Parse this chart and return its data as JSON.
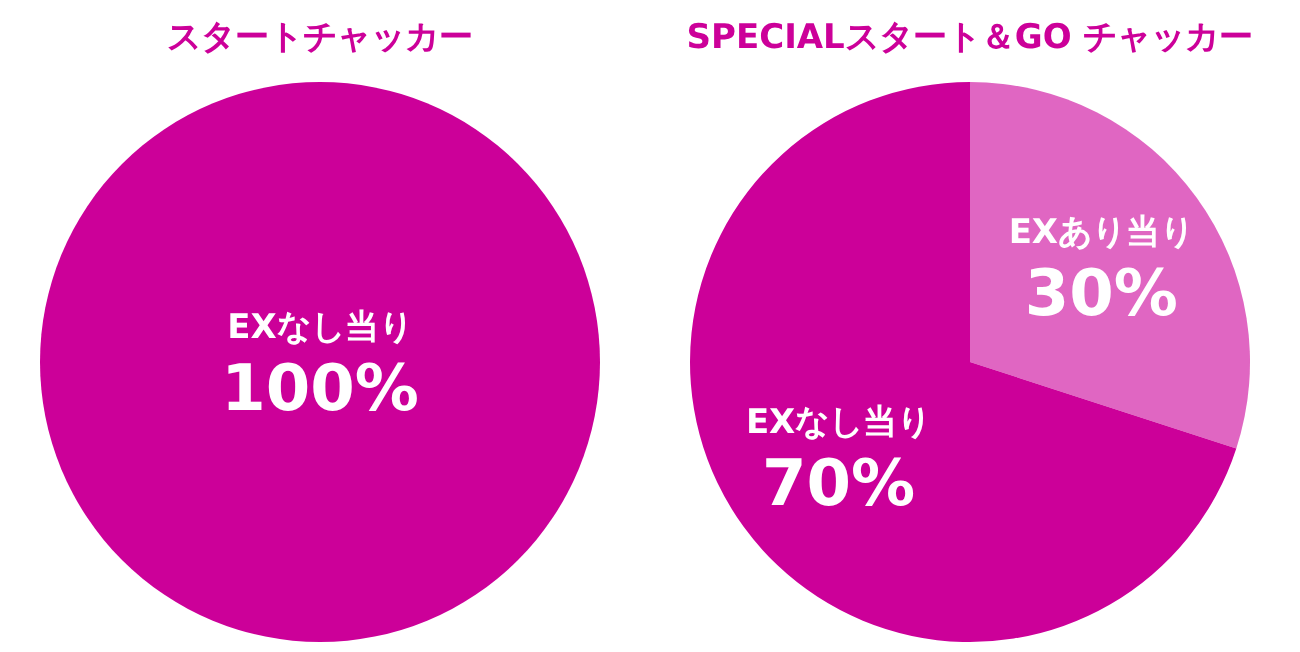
{
  "chart_data": [
    {
      "type": "pie",
      "title": "スタートチャッカー",
      "categories": [
        "EXなし当り"
      ],
      "values": [
        100
      ],
      "colors": [
        "#cc0099"
      ],
      "value_labels": [
        "100%"
      ]
    },
    {
      "type": "pie",
      "title": "SPECIALスタート＆GO チャッカー",
      "categories": [
        "EXあり当り",
        "EXなし当り"
      ],
      "values": [
        30,
        70
      ],
      "colors": [
        "#e066c2",
        "#cc0099"
      ],
      "value_labels": [
        "30%",
        "70%"
      ]
    }
  ]
}
